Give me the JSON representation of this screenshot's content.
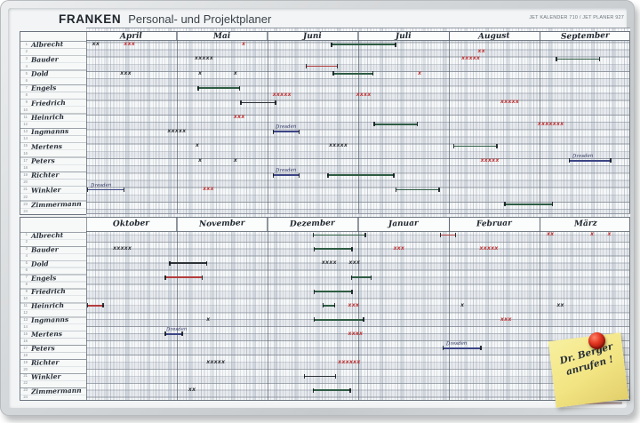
{
  "header": {
    "brand": "FRANKEN",
    "title": "Personal- und Projektplaner",
    "model_code": "JET KALENDER 710 / JET PLANER 927"
  },
  "calendar": {
    "months_h1": [
      "April",
      "Mai",
      "Juni",
      "Juli",
      "August",
      "September"
    ],
    "months_h2": [
      "Oktober",
      "November",
      "Dezember",
      "Januar",
      "Februar",
      "März"
    ],
    "names": [
      "Albrecht",
      "Bauder",
      "Dold",
      "Engels",
      "Friedrich",
      "Heinrich",
      "Ingmanns",
      "Mertens",
      "Peters",
      "Richter",
      "Winkler",
      "Zimmermann"
    ],
    "row_numbers": [
      "1",
      "2",
      "3",
      "4",
      "5",
      "6",
      "7",
      "8",
      "9",
      "10",
      "11",
      "12",
      "13",
      "14",
      "15",
      "16",
      "17",
      "18",
      "19",
      "20",
      "21",
      "22",
      "23",
      "24"
    ],
    "marks": [
      {
        "h": 1,
        "row": 1,
        "kind": "xs",
        "color": "black",
        "text": "xx",
        "m": 0.07
      },
      {
        "h": 1,
        "row": 1,
        "kind": "xs",
        "color": "red",
        "text": "xxx",
        "m": 0.42
      },
      {
        "h": 1,
        "row": 1,
        "kind": "xs",
        "color": "red",
        "text": "x",
        "m": 1.72
      },
      {
        "h": 1,
        "row": 1,
        "kind": "bar",
        "color": "green",
        "m0": 2.7,
        "m1": 3.42
      },
      {
        "h": 1,
        "row": 2,
        "kind": "xs",
        "color": "red",
        "text": "xx",
        "m": 4.32
      },
      {
        "h": 1,
        "row": 3,
        "kind": "xs",
        "color": "black",
        "text": "xxxxx",
        "m": 1.2
      },
      {
        "h": 1,
        "row": 3,
        "kind": "xs",
        "color": "red",
        "text": "xxxxx",
        "m": 4.14
      },
      {
        "h": 1,
        "row": 3,
        "kind": "bar",
        "color": "green",
        "m0": 5.18,
        "m1": 5.67
      },
      {
        "h": 1,
        "row": 4,
        "kind": "bar",
        "color": "red",
        "m0": 2.42,
        "m1": 2.78
      },
      {
        "h": 1,
        "row": 5,
        "kind": "xs",
        "color": "black",
        "text": "xxx",
        "m": 0.38
      },
      {
        "h": 1,
        "row": 5,
        "kind": "xs",
        "color": "black",
        "text": "x",
        "m": 1.24
      },
      {
        "h": 1,
        "row": 5,
        "kind": "xs",
        "color": "black",
        "text": "x",
        "m": 1.63
      },
      {
        "h": 1,
        "row": 5,
        "kind": "bar",
        "color": "green",
        "m0": 2.72,
        "m1": 3.17
      },
      {
        "h": 1,
        "row": 5,
        "kind": "xs",
        "color": "red",
        "text": "x",
        "m": 3.66
      },
      {
        "h": 1,
        "row": 7,
        "kind": "bar",
        "color": "green",
        "m0": 1.23,
        "m1": 1.7
      },
      {
        "h": 1,
        "row": 8,
        "kind": "xs",
        "color": "red",
        "text": "xxxxx",
        "m": 2.06
      },
      {
        "h": 1,
        "row": 8,
        "kind": "xs",
        "color": "red",
        "text": "xxxx",
        "m": 2.98
      },
      {
        "h": 1,
        "row": 9,
        "kind": "bar",
        "color": "black",
        "m0": 1.7,
        "m1": 2.1
      },
      {
        "h": 1,
        "row": 9,
        "kind": "xs",
        "color": "red",
        "text": "xxxxx",
        "m": 4.57
      },
      {
        "h": 1,
        "row": 11,
        "kind": "xs",
        "color": "red",
        "text": "xxx",
        "m": 1.63
      },
      {
        "h": 1,
        "row": 12,
        "kind": "bar",
        "color": "green",
        "m0": 3.17,
        "m1": 3.66
      },
      {
        "h": 1,
        "row": 12,
        "kind": "xs",
        "color": "red",
        "text": "xxxxxxx",
        "m": 4.98
      },
      {
        "h": 1,
        "row": 13,
        "kind": "xs",
        "color": "black",
        "text": "xxxxx",
        "m": 0.9
      },
      {
        "h": 1,
        "row": 13,
        "kind": "bar",
        "color": "blue",
        "label": "Dresden",
        "m0": 2.06,
        "m1": 2.36
      },
      {
        "h": 1,
        "row": 15,
        "kind": "xs",
        "color": "black",
        "text": "x",
        "m": 1.21
      },
      {
        "h": 1,
        "row": 15,
        "kind": "xs",
        "color": "black",
        "text": "xxxxx",
        "m": 2.68
      },
      {
        "h": 1,
        "row": 15,
        "kind": "bar",
        "color": "green",
        "m0": 4.05,
        "m1": 4.54
      },
      {
        "h": 1,
        "row": 17,
        "kind": "xs",
        "color": "black",
        "text": "x",
        "m": 1.24
      },
      {
        "h": 1,
        "row": 17,
        "kind": "xs",
        "color": "black",
        "text": "x",
        "m": 1.63
      },
      {
        "h": 1,
        "row": 17,
        "kind": "xs",
        "color": "red",
        "text": "xxxxx",
        "m": 4.35
      },
      {
        "h": 1,
        "row": 17,
        "kind": "bar",
        "color": "blue",
        "label": "Dresden",
        "m0": 5.32,
        "m1": 5.79
      },
      {
        "h": 1,
        "row": 19,
        "kind": "bar",
        "color": "blue",
        "label": "Dresden",
        "m0": 2.06,
        "m1": 2.36
      },
      {
        "h": 1,
        "row": 19,
        "kind": "bar",
        "color": "green",
        "m0": 2.66,
        "m1": 3.4
      },
      {
        "h": 1,
        "row": 21,
        "kind": "bar",
        "color": "blue",
        "label": "Dresden",
        "m0": 0.01,
        "m1": 0.43
      },
      {
        "h": 1,
        "row": 21,
        "kind": "xs",
        "color": "red",
        "text": "xxx",
        "m": 1.29
      },
      {
        "h": 1,
        "row": 21,
        "kind": "bar",
        "color": "green",
        "m0": 3.41,
        "m1": 3.9
      },
      {
        "h": 1,
        "row": 23,
        "kind": "bar",
        "color": "green",
        "m0": 4.61,
        "m1": 5.15
      },
      {
        "h": 2,
        "row": 1,
        "kind": "bar",
        "color": "green",
        "m0": 2.5,
        "m1": 3.09
      },
      {
        "h": 2,
        "row": 1,
        "kind": "bar",
        "color": "red",
        "m0": 3.9,
        "m1": 4.08
      },
      {
        "h": 2,
        "row": 1,
        "kind": "xs",
        "color": "red",
        "text": "xx",
        "m": 5.08
      },
      {
        "h": 2,
        "row": 1,
        "kind": "xs",
        "color": "red",
        "text": "x",
        "m": 5.56
      },
      {
        "h": 2,
        "row": 1,
        "kind": "xs",
        "color": "red",
        "text": "x",
        "m": 5.75
      },
      {
        "h": 2,
        "row": 3,
        "kind": "xs",
        "color": "black",
        "text": "xxxxx",
        "m": 0.3
      },
      {
        "h": 2,
        "row": 3,
        "kind": "bar",
        "color": "green",
        "m0": 2.51,
        "m1": 2.94
      },
      {
        "h": 2,
        "row": 3,
        "kind": "xs",
        "color": "red",
        "text": "xxx",
        "m": 3.39
      },
      {
        "h": 2,
        "row": 3,
        "kind": "xs",
        "color": "red",
        "text": "xxxxx",
        "m": 4.34
      },
      {
        "h": 2,
        "row": 5,
        "kind": "bar",
        "color": "black",
        "m0": 0.92,
        "m1": 1.34
      },
      {
        "h": 2,
        "row": 5,
        "kind": "xs",
        "color": "black",
        "text": "xxxx",
        "m": 2.6
      },
      {
        "h": 2,
        "row": 5,
        "kind": "xs",
        "color": "black",
        "text": "xxx",
        "m": 2.9
      },
      {
        "h": 2,
        "row": 7,
        "kind": "bar",
        "color": "red",
        "m0": 0.87,
        "m1": 1.29
      },
      {
        "h": 2,
        "row": 7,
        "kind": "bar",
        "color": "green",
        "m0": 2.92,
        "m1": 3.15
      },
      {
        "h": 2,
        "row": 9,
        "kind": "bar",
        "color": "green",
        "m0": 2.51,
        "m1": 2.94
      },
      {
        "h": 2,
        "row": 11,
        "kind": "bar",
        "color": "red",
        "m0": 0.01,
        "m1": 0.2
      },
      {
        "h": 2,
        "row": 11,
        "kind": "bar",
        "color": "green",
        "m0": 2.61,
        "m1": 2.75
      },
      {
        "h": 2,
        "row": 11,
        "kind": "xs",
        "color": "red",
        "text": "xxx",
        "m": 2.89
      },
      {
        "h": 2,
        "row": 11,
        "kind": "xs",
        "color": "black",
        "text": "x",
        "m": 4.13
      },
      {
        "h": 2,
        "row": 11,
        "kind": "xs",
        "color": "black",
        "text": "xx",
        "m": 5.19
      },
      {
        "h": 2,
        "row": 13,
        "kind": "xs",
        "color": "black",
        "text": "x",
        "m": 1.33
      },
      {
        "h": 2,
        "row": 13,
        "kind": "bar",
        "color": "green",
        "m0": 2.51,
        "m1": 3.07
      },
      {
        "h": 2,
        "row": 13,
        "kind": "xs",
        "color": "red",
        "text": "xxx",
        "m": 4.57
      },
      {
        "h": 2,
        "row": 15,
        "kind": "bar",
        "color": "blue",
        "label": "Dresden",
        "m0": 0.87,
        "m1": 1.07
      },
      {
        "h": 2,
        "row": 15,
        "kind": "xs",
        "color": "red",
        "text": "xxxx",
        "m": 2.89
      },
      {
        "h": 2,
        "row": 17,
        "kind": "bar",
        "color": "blue",
        "label": "Dresden",
        "m0": 3.93,
        "m1": 4.36
      },
      {
        "h": 2,
        "row": 19,
        "kind": "xs",
        "color": "black",
        "text": "xxxxx",
        "m": 1.33
      },
      {
        "h": 2,
        "row": 19,
        "kind": "xs",
        "color": "red",
        "text": "xxxxxx",
        "m": 2.78
      },
      {
        "h": 2,
        "row": 21,
        "kind": "bar",
        "color": "black",
        "m0": 2.4,
        "m1": 2.76
      },
      {
        "h": 2,
        "row": 23,
        "kind": "xs",
        "color": "black",
        "text": "xx",
        "m": 1.13
      },
      {
        "h": 2,
        "row": 23,
        "kind": "bar",
        "color": "green",
        "m0": 2.5,
        "m1": 2.92
      }
    ]
  },
  "sticky_note": {
    "line1": "Dr. Berger",
    "line2": "anrufen !"
  },
  "colors": {
    "bar_green": "#2e5c43",
    "bar_red": "#b23c3c",
    "bar_blue": "#3c4585",
    "bar_black": "#2e3338",
    "x_red": "#c13535",
    "x_black": "#34373b",
    "note_yellow": "#f2e68a",
    "magnet_red": "#d92a18"
  }
}
